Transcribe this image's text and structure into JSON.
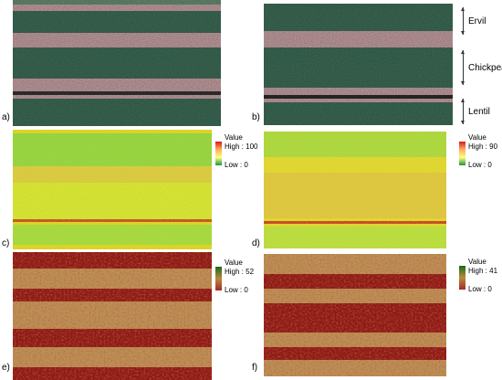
{
  "panels": [
    {
      "id": "a",
      "label": "a)",
      "kind": "rgb"
    },
    {
      "id": "b",
      "label": "b)",
      "kind": "rgb"
    },
    {
      "id": "c",
      "label": "c)",
      "kind": "index"
    },
    {
      "id": "d",
      "label": "d)",
      "kind": "index"
    },
    {
      "id": "e",
      "label": "e)",
      "kind": "class"
    },
    {
      "id": "f",
      "label": "f)",
      "kind": "class"
    }
  ],
  "legends": {
    "c": {
      "title": "Value",
      "high": "High : 100",
      "low": "Low : 0",
      "colors": [
        "#d7191c",
        "#fdae61",
        "#ffff80",
        "#1a9641"
      ]
    },
    "d": {
      "title": "Value",
      "high": "High : 90",
      "low": "Low : 0",
      "colors": [
        "#d7191c",
        "#fdae61",
        "#ffff80",
        "#1a9641"
      ]
    },
    "e": {
      "title": "Value",
      "high": "High : 52",
      "low": "Low : 0",
      "colors": [
        "#1a6b1a",
        "#b98a3c",
        "#a52a2a"
      ]
    },
    "f": {
      "title": "Value",
      "high": "High : 41",
      "low": "Low : 0",
      "colors": [
        "#1a6b1a",
        "#b98a3c",
        "#a52a2a"
      ]
    }
  },
  "crops": [
    {
      "name": "Ervil"
    },
    {
      "name": "Chickpea"
    },
    {
      "name": "Lentil"
    }
  ],
  "colors": {
    "canopy": "#3e6e58",
    "soil": "#c9a3a6",
    "red_class": "#8b1a12",
    "tan_class": "#b99254"
  }
}
